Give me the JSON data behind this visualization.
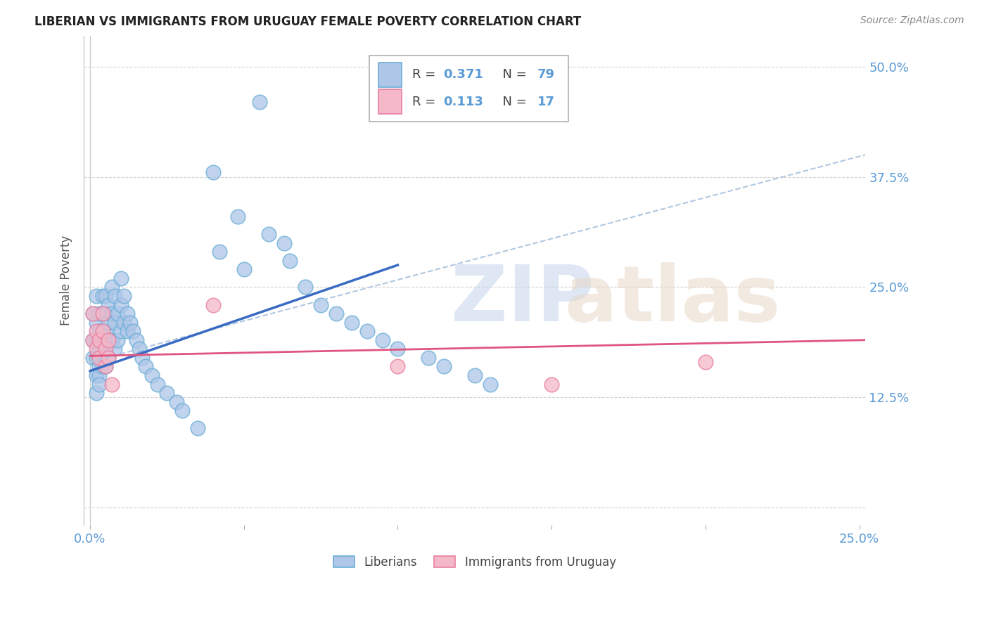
{
  "title": "LIBERIAN VS IMMIGRANTS FROM URUGUAY FEMALE POVERTY CORRELATION CHART",
  "source": "Source: ZipAtlas.com",
  "ylabel": "Female Poverty",
  "xlim": [
    -0.002,
    0.252
  ],
  "ylim": [
    -0.02,
    0.535
  ],
  "yticks": [
    0.0,
    0.125,
    0.25,
    0.375,
    0.5
  ],
  "ytick_labels_right": [
    "",
    "12.5%",
    "25.0%",
    "37.5%",
    "50.0%"
  ],
  "xticks": [
    0.0,
    0.05,
    0.1,
    0.15,
    0.2,
    0.25
  ],
  "xtick_labels": [
    "0.0%",
    "",
    "",
    "",
    "",
    "25.0%"
  ],
  "liberian_color": "#aec6e8",
  "liberian_edge": "#6aaed6",
  "uruguay_color": "#f4b8c8",
  "uruguay_edge": "#e87fa0",
  "line_blue": "#3a6bc4",
  "line_pink": "#e05580",
  "line_dash_color": "#b0c8e0",
  "background_color": "#ffffff",
  "grid_color": "#d0d0d0",
  "tick_color": "#5b9bd5",
  "watermark_zip_color": "#c8d8ec",
  "watermark_atlas_color": "#e8d8c8",
  "legend_text_color": "#333333",
  "legend_value_color": "#5b9bd5",
  "liberian_x": [
    0.001,
    0.001,
    0.001,
    0.002,
    0.002,
    0.002,
    0.002,
    0.002,
    0.002,
    0.003,
    0.003,
    0.003,
    0.003,
    0.003,
    0.003,
    0.003,
    0.003,
    0.004,
    0.004,
    0.004,
    0.004,
    0.004,
    0.004,
    0.005,
    0.005,
    0.005,
    0.005,
    0.005,
    0.006,
    0.006,
    0.006,
    0.006,
    0.007,
    0.007,
    0.007,
    0.008,
    0.008,
    0.008,
    0.009,
    0.009,
    0.01,
    0.01,
    0.01,
    0.011,
    0.011,
    0.012,
    0.012,
    0.013,
    0.014,
    0.015,
    0.016,
    0.017,
    0.018,
    0.02,
    0.022,
    0.025,
    0.028,
    0.03,
    0.035,
    0.04,
    0.042,
    0.048,
    0.05,
    0.055,
    0.058,
    0.063,
    0.065,
    0.07,
    0.075,
    0.08,
    0.085,
    0.09,
    0.095,
    0.1,
    0.11,
    0.115,
    0.125,
    0.13
  ],
  "liberian_y": [
    0.22,
    0.19,
    0.17,
    0.24,
    0.21,
    0.19,
    0.17,
    0.15,
    0.13,
    0.22,
    0.2,
    0.19,
    0.18,
    0.17,
    0.16,
    0.15,
    0.14,
    0.24,
    0.22,
    0.2,
    0.19,
    0.18,
    0.16,
    0.24,
    0.22,
    0.2,
    0.18,
    0.16,
    0.23,
    0.21,
    0.19,
    0.17,
    0.25,
    0.22,
    0.19,
    0.24,
    0.21,
    0.18,
    0.22,
    0.19,
    0.26,
    0.23,
    0.2,
    0.24,
    0.21,
    0.22,
    0.2,
    0.21,
    0.2,
    0.19,
    0.18,
    0.17,
    0.16,
    0.15,
    0.14,
    0.13,
    0.12,
    0.11,
    0.09,
    0.38,
    0.29,
    0.33,
    0.27,
    0.46,
    0.31,
    0.3,
    0.28,
    0.25,
    0.23,
    0.22,
    0.21,
    0.2,
    0.19,
    0.18,
    0.17,
    0.16,
    0.15,
    0.14
  ],
  "uruguay_x": [
    0.001,
    0.001,
    0.002,
    0.002,
    0.003,
    0.003,
    0.004,
    0.004,
    0.005,
    0.005,
    0.006,
    0.006,
    0.007,
    0.04,
    0.1,
    0.15,
    0.2
  ],
  "uruguay_y": [
    0.22,
    0.19,
    0.2,
    0.18,
    0.19,
    0.17,
    0.22,
    0.2,
    0.18,
    0.16,
    0.19,
    0.17,
    0.14,
    0.23,
    0.16,
    0.14,
    0.165
  ],
  "blue_line_x0": 0.0,
  "blue_line_y0": 0.155,
  "blue_line_x1": 0.1,
  "blue_line_y1": 0.275,
  "dash_line_x0": 0.0,
  "dash_line_y0": 0.165,
  "dash_line_x1": 0.252,
  "dash_line_y1": 0.4,
  "pink_line_x0": 0.0,
  "pink_line_y0": 0.172,
  "pink_line_x1": 0.252,
  "pink_line_y1": 0.19
}
